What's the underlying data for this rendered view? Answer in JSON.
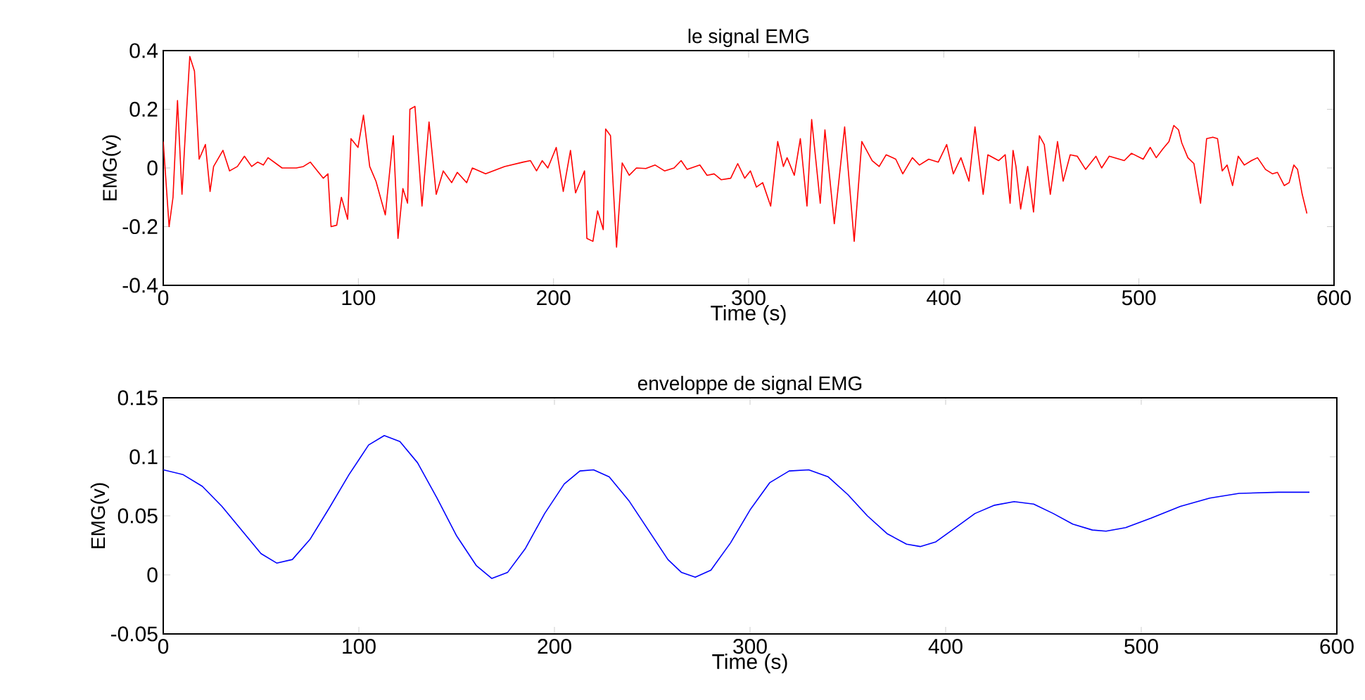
{
  "chart_data": [
    {
      "type": "line",
      "title": "le signal EMG",
      "xlabel": "Time (s)",
      "ylabel": "EMG(v)",
      "x": [
        0,
        3,
        5,
        7.3,
        9.6,
        12,
        13.6,
        16,
        18.4,
        21.6,
        24,
        25.8,
        30.6,
        34,
        38,
        41.6,
        45.3,
        48.4,
        51.3,
        53.7,
        60.9,
        68.2,
        71.8,
        75.4,
        79,
        82,
        84.4,
        86,
        88.9,
        91.3,
        94.5,
        96.2,
        99.8,
        102.6,
        105.8,
        109,
        113.8,
        117.9,
        120.3,
        122.8,
        125.2,
        126.4,
        129,
        132.6,
        136.2,
        139.9,
        143.5,
        147.8,
        150.7,
        155.5,
        158.4,
        165.2,
        174.9,
        184.5,
        188.2,
        191.3,
        194.2,
        197.1,
        201.4,
        205,
        208.7,
        211.3,
        215.9,
        217.1,
        220.2,
        222.6,
        225.5,
        226.7,
        229.2,
        232.3,
        235.2,
        238.8,
        242.5,
        247.3,
        252.1,
        256.9,
        261.8,
        265.4,
        268.5,
        275,
        278.7,
        282.3,
        285.9,
        290.8,
        294.4,
        298,
        300.9,
        304,
        307.2,
        311.3,
        314.9,
        317.8,
        319.7,
        323.4,
        326.5,
        329.9,
        332.3,
        336.7,
        339.1,
        343.9,
        349.2,
        354.1,
        358,
        363.3,
        366.9,
        370.5,
        375.4,
        379,
        383.9,
        387.5,
        392.3,
        397.2,
        401.5,
        404.9,
        408.8,
        412.9,
        416,
        420.2,
        422.6,
        428.1,
        431.5,
        434,
        435.5,
        437,
        439.4,
        443,
        446,
        449,
        451.5,
        454.6,
        458.3,
        461.2,
        464.8,
        468.4,
        472.7,
        478,
        480.9,
        484.8,
        492.5,
        496.2,
        502.2,
        505.8,
        508.9,
        512.3,
        515.4,
        517.9,
        520.3,
        522,
        525.1,
        528.2,
        531.6,
        534.7,
        537.9,
        540.3,
        542.7,
        545.2,
        548,
        550.9,
        554,
        557.7,
        560.8,
        564.9,
        568.5,
        571,
        574.5,
        577,
        579.4,
        581.3,
        583.7,
        586.1
      ],
      "series": [
        {
          "color": "#ff0000",
          "values": [
            0.09,
            -0.2,
            -0.1,
            0.23,
            -0.09,
            0.2,
            0.38,
            0.33,
            0.03,
            0.08,
            -0.08,
            0.005,
            0.06,
            -0.01,
            0.005,
            0.04,
            0.005,
            0.02,
            0.01,
            0.035,
            0,
            0,
            0.005,
            0.02,
            -0.01,
            -0.035,
            -0.02,
            -0.2,
            -0.195,
            -0.1,
            -0.175,
            0.1,
            0.07,
            0.18,
            0.005,
            -0.045,
            -0.16,
            0.11,
            -0.24,
            -0.07,
            -0.12,
            0.2,
            0.21,
            -0.13,
            0.157,
            -0.09,
            -0.01,
            -0.05,
            -0.015,
            -0.05,
            0,
            -0.02,
            0.005,
            0.02,
            0.025,
            -0.01,
            0.025,
            0,
            0.07,
            -0.08,
            0.06,
            -0.085,
            -0.01,
            -0.24,
            -0.25,
            -0.146,
            -0.21,
            0.133,
            0.11,
            -0.27,
            0.017,
            -0.025,
            0,
            -0.002,
            0.01,
            -0.01,
            0,
            0.025,
            -0.005,
            0.01,
            -0.025,
            -0.02,
            -0.04,
            -0.035,
            0.015,
            -0.035,
            -0.01,
            -0.065,
            -0.05,
            -0.13,
            0.09,
            0.005,
            0.035,
            -0.025,
            0.1,
            -0.13,
            0.165,
            -0.12,
            0.13,
            -0.19,
            0.14,
            -0.25,
            0.09,
            0.025,
            0.005,
            0.045,
            0.03,
            -0.02,
            0.035,
            0.01,
            0.03,
            0.02,
            0.08,
            -0.02,
            0.035,
            -0.045,
            0.14,
            -0.09,
            0.045,
            0.025,
            0.045,
            -0.12,
            0.06,
            0.005,
            -0.14,
            0.005,
            -0.15,
            0.11,
            0.08,
            -0.09,
            0.09,
            -0.045,
            0.045,
            0.04,
            -0.005,
            0.04,
            0,
            0.04,
            0.025,
            0.05,
            0.03,
            0.07,
            0.035,
            0.065,
            0.09,
            0.145,
            0.13,
            0.085,
            0.035,
            0.015,
            -0.12,
            0.1,
            0.105,
            0.1,
            -0.01,
            0.01,
            -0.06,
            0.04,
            0.01,
            0.025,
            0.035,
            -0.005,
            -0.02,
            -0.015,
            -0.06,
            -0.05,
            0.01,
            -0.005,
            -0.09,
            -0.155
          ]
        }
      ],
      "xlim": [
        0,
        600
      ],
      "ylim": [
        -0.4,
        0.4
      ],
      "xticks": [
        0,
        100,
        200,
        300,
        400,
        500,
        600
      ],
      "yticks": [
        -0.4,
        -0.2,
        0,
        0.2,
        0.4
      ]
    },
    {
      "type": "line",
      "title": "enveloppe de signal EMG",
      "xlabel": "Time (s)",
      "ylabel": "EMG(v)",
      "x": [
        0,
        10,
        20,
        30,
        40,
        50,
        58,
        66,
        75,
        85,
        95,
        105,
        113,
        121,
        130,
        140,
        150,
        160,
        168,
        176,
        185,
        195,
        205,
        213,
        220,
        228,
        238,
        248,
        258,
        265,
        272,
        280,
        290,
        300,
        310,
        320,
        330,
        340,
        350,
        360,
        370,
        380,
        387,
        395,
        405,
        415,
        425,
        435,
        445,
        455,
        465,
        475,
        482,
        492,
        505,
        520,
        535,
        550,
        570,
        586
      ],
      "series": [
        {
          "color": "#0000ff",
          "values": [
            0.089,
            0.085,
            0.075,
            0.058,
            0.038,
            0.018,
            0.01,
            0.013,
            0.03,
            0.057,
            0.085,
            0.11,
            0.118,
            0.113,
            0.095,
            0.065,
            0.033,
            0.008,
            -0.003,
            0.002,
            0.022,
            0.052,
            0.077,
            0.088,
            0.089,
            0.083,
            0.063,
            0.038,
            0.013,
            0.002,
            -0.002,
            0.004,
            0.027,
            0.055,
            0.078,
            0.088,
            0.089,
            0.083,
            0.068,
            0.05,
            0.035,
            0.026,
            0.024,
            0.028,
            0.04,
            0.052,
            0.059,
            0.062,
            0.06,
            0.052,
            0.043,
            0.038,
            0.037,
            0.04,
            0.048,
            0.058,
            0.065,
            0.069,
            0.07,
            0.07
          ]
        }
      ],
      "xlim": [
        0,
        600
      ],
      "ylim": [
        -0.05,
        0.15
      ],
      "xticks": [
        0,
        100,
        200,
        300,
        400,
        500,
        600
      ],
      "yticks": [
        -0.05,
        0,
        0.05,
        0.1,
        0.15
      ]
    }
  ]
}
